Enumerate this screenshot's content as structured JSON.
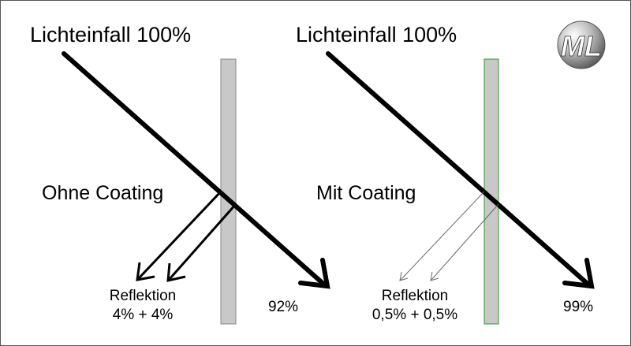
{
  "colors": {
    "glass_fill": "#c8c8c8",
    "glass_border_plain": "#888888",
    "glass_border_coated": "#2e9a2e",
    "arrow": "#000000",
    "thin_arrow": "#6a6a6a"
  },
  "left_panel": {
    "incident_label": "Lichteinfall 100%",
    "type_label": "Ohne Coating",
    "reflection_title": "Reflektion",
    "reflection_value": "4% + 4%",
    "transmission_value": "92%"
  },
  "right_panel": {
    "incident_label": "Lichteinfall 100%",
    "type_label": "Mit Coating",
    "reflection_title": "Reflektion",
    "reflection_value": "0,5% + 0,5%",
    "transmission_value": "99%"
  },
  "logo": {
    "text": "ML",
    "icon": "ml-logo-icon"
  }
}
